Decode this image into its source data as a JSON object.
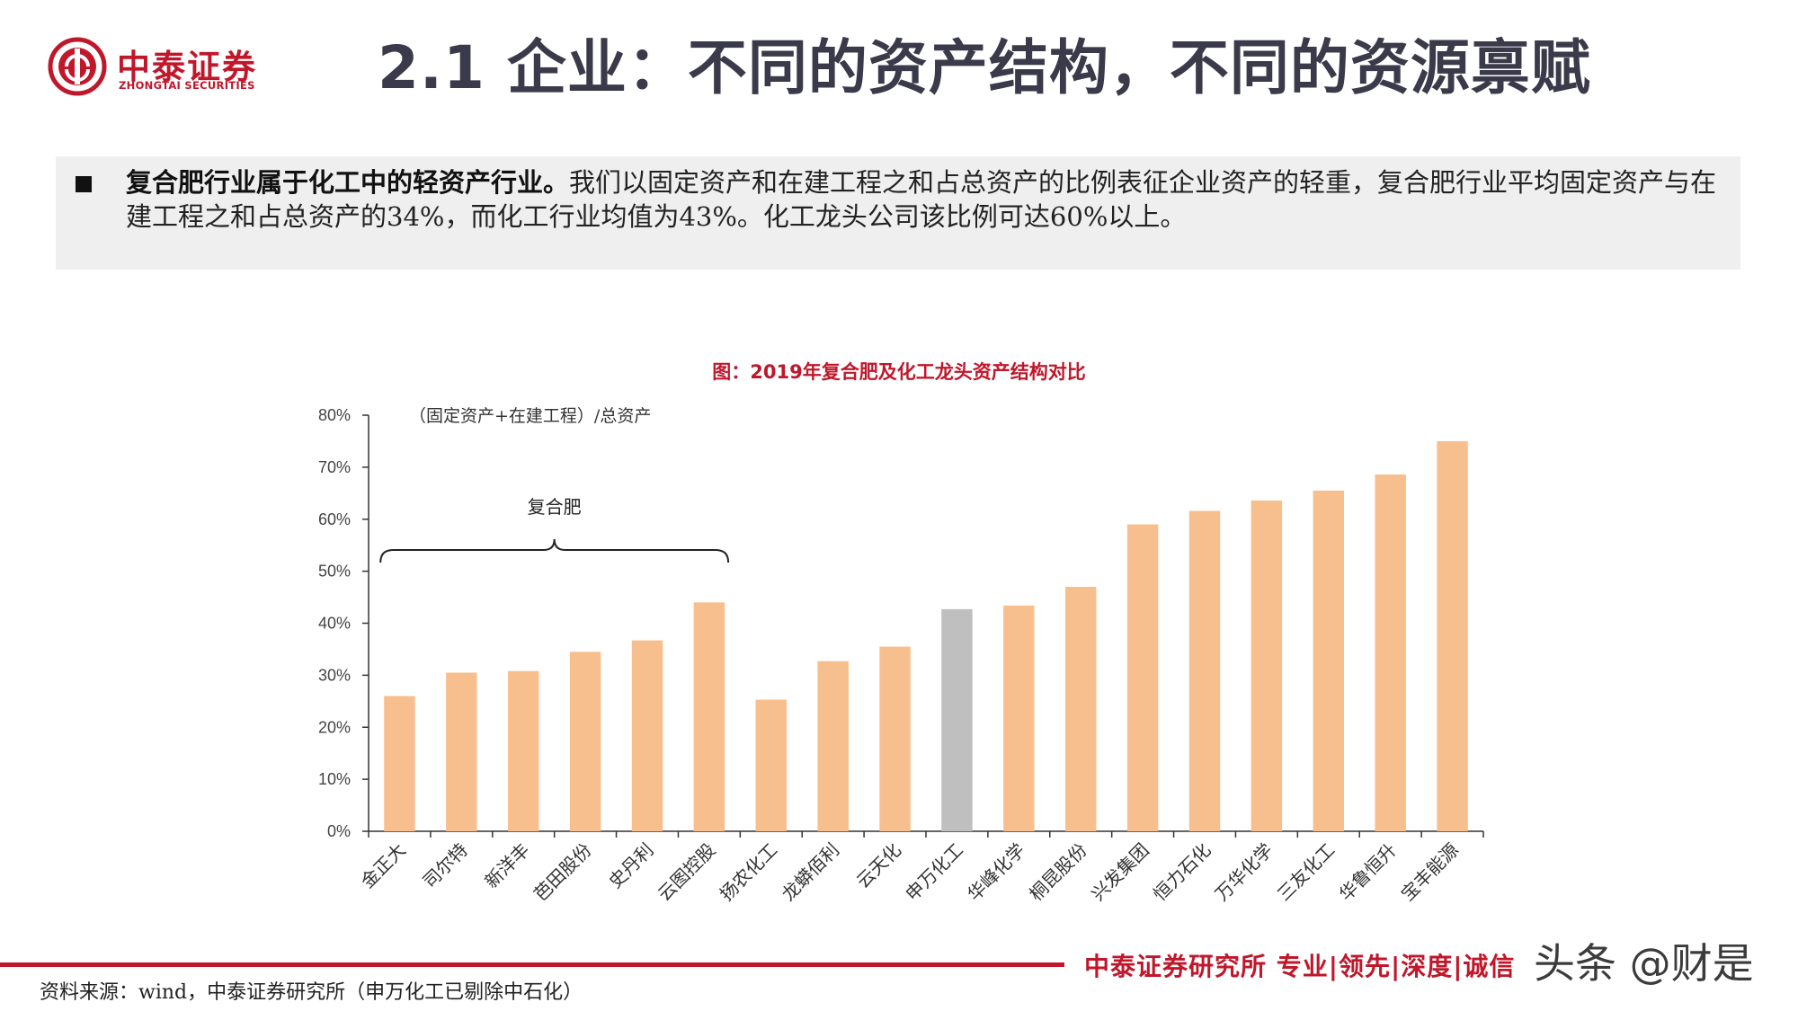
{
  "brand": {
    "name_cn": "中泰证券",
    "name_en": "ZHONGTAI SECURITIES"
  },
  "header": {
    "title": "2.1 企业：不同的资产结构，不同的资源禀赋"
  },
  "summary": {
    "bold": "复合肥行业属于化工中的轻资产行业。",
    "text": "我们以固定资产和在建工程之和占总资产的比例表征企业资产的轻重，复合肥行业平均固定资产与在建工程之和占总资产的34%，而化工行业均值为43%。化工龙头公司该比例可达60%以上。"
  },
  "chart_data": {
    "type": "bar",
    "title": "图：2019年复合肥及化工龙头资产结构对比",
    "ylabel": "（固定资产+在建工程）/总资产",
    "ylim": [
      0,
      80
    ],
    "y_ticks": [
      "0%",
      "10%",
      "20%",
      "30%",
      "40%",
      "50%",
      "60%",
      "70%",
      "80%"
    ],
    "categories": [
      "金正大",
      "司尔特",
      "新洋丰",
      "芭田股份",
      "史丹利",
      "云图控股",
      "扬农化工",
      "龙蟒佰利",
      "云天化",
      "申万化工",
      "华峰化学",
      "桐昆股份",
      "兴发集团",
      "恒力石化",
      "万华化学",
      "三友化工",
      "华鲁恒升",
      "宝丰能源"
    ],
    "values": [
      26,
      30.5,
      30.8,
      34.5,
      36.7,
      44,
      25.3,
      32.7,
      35.5,
      42.7,
      43.4,
      47,
      59,
      61.6,
      63.6,
      65.5,
      68.6,
      75
    ],
    "bar_color": "#f8bf8e",
    "highlight_color": "#bfbfbf",
    "highlight_category": "申万化工",
    "bracket": {
      "label": "复合肥",
      "from": "金正大",
      "to": "云图控股"
    },
    "grid": false
  },
  "footer": {
    "slogan": "中泰证券研究所 专业|领先|深度|诚信",
    "watermark": "头条 @财是",
    "source": "资料来源：wind，中泰证券研究所（申万化工已剔除中石化）"
  }
}
